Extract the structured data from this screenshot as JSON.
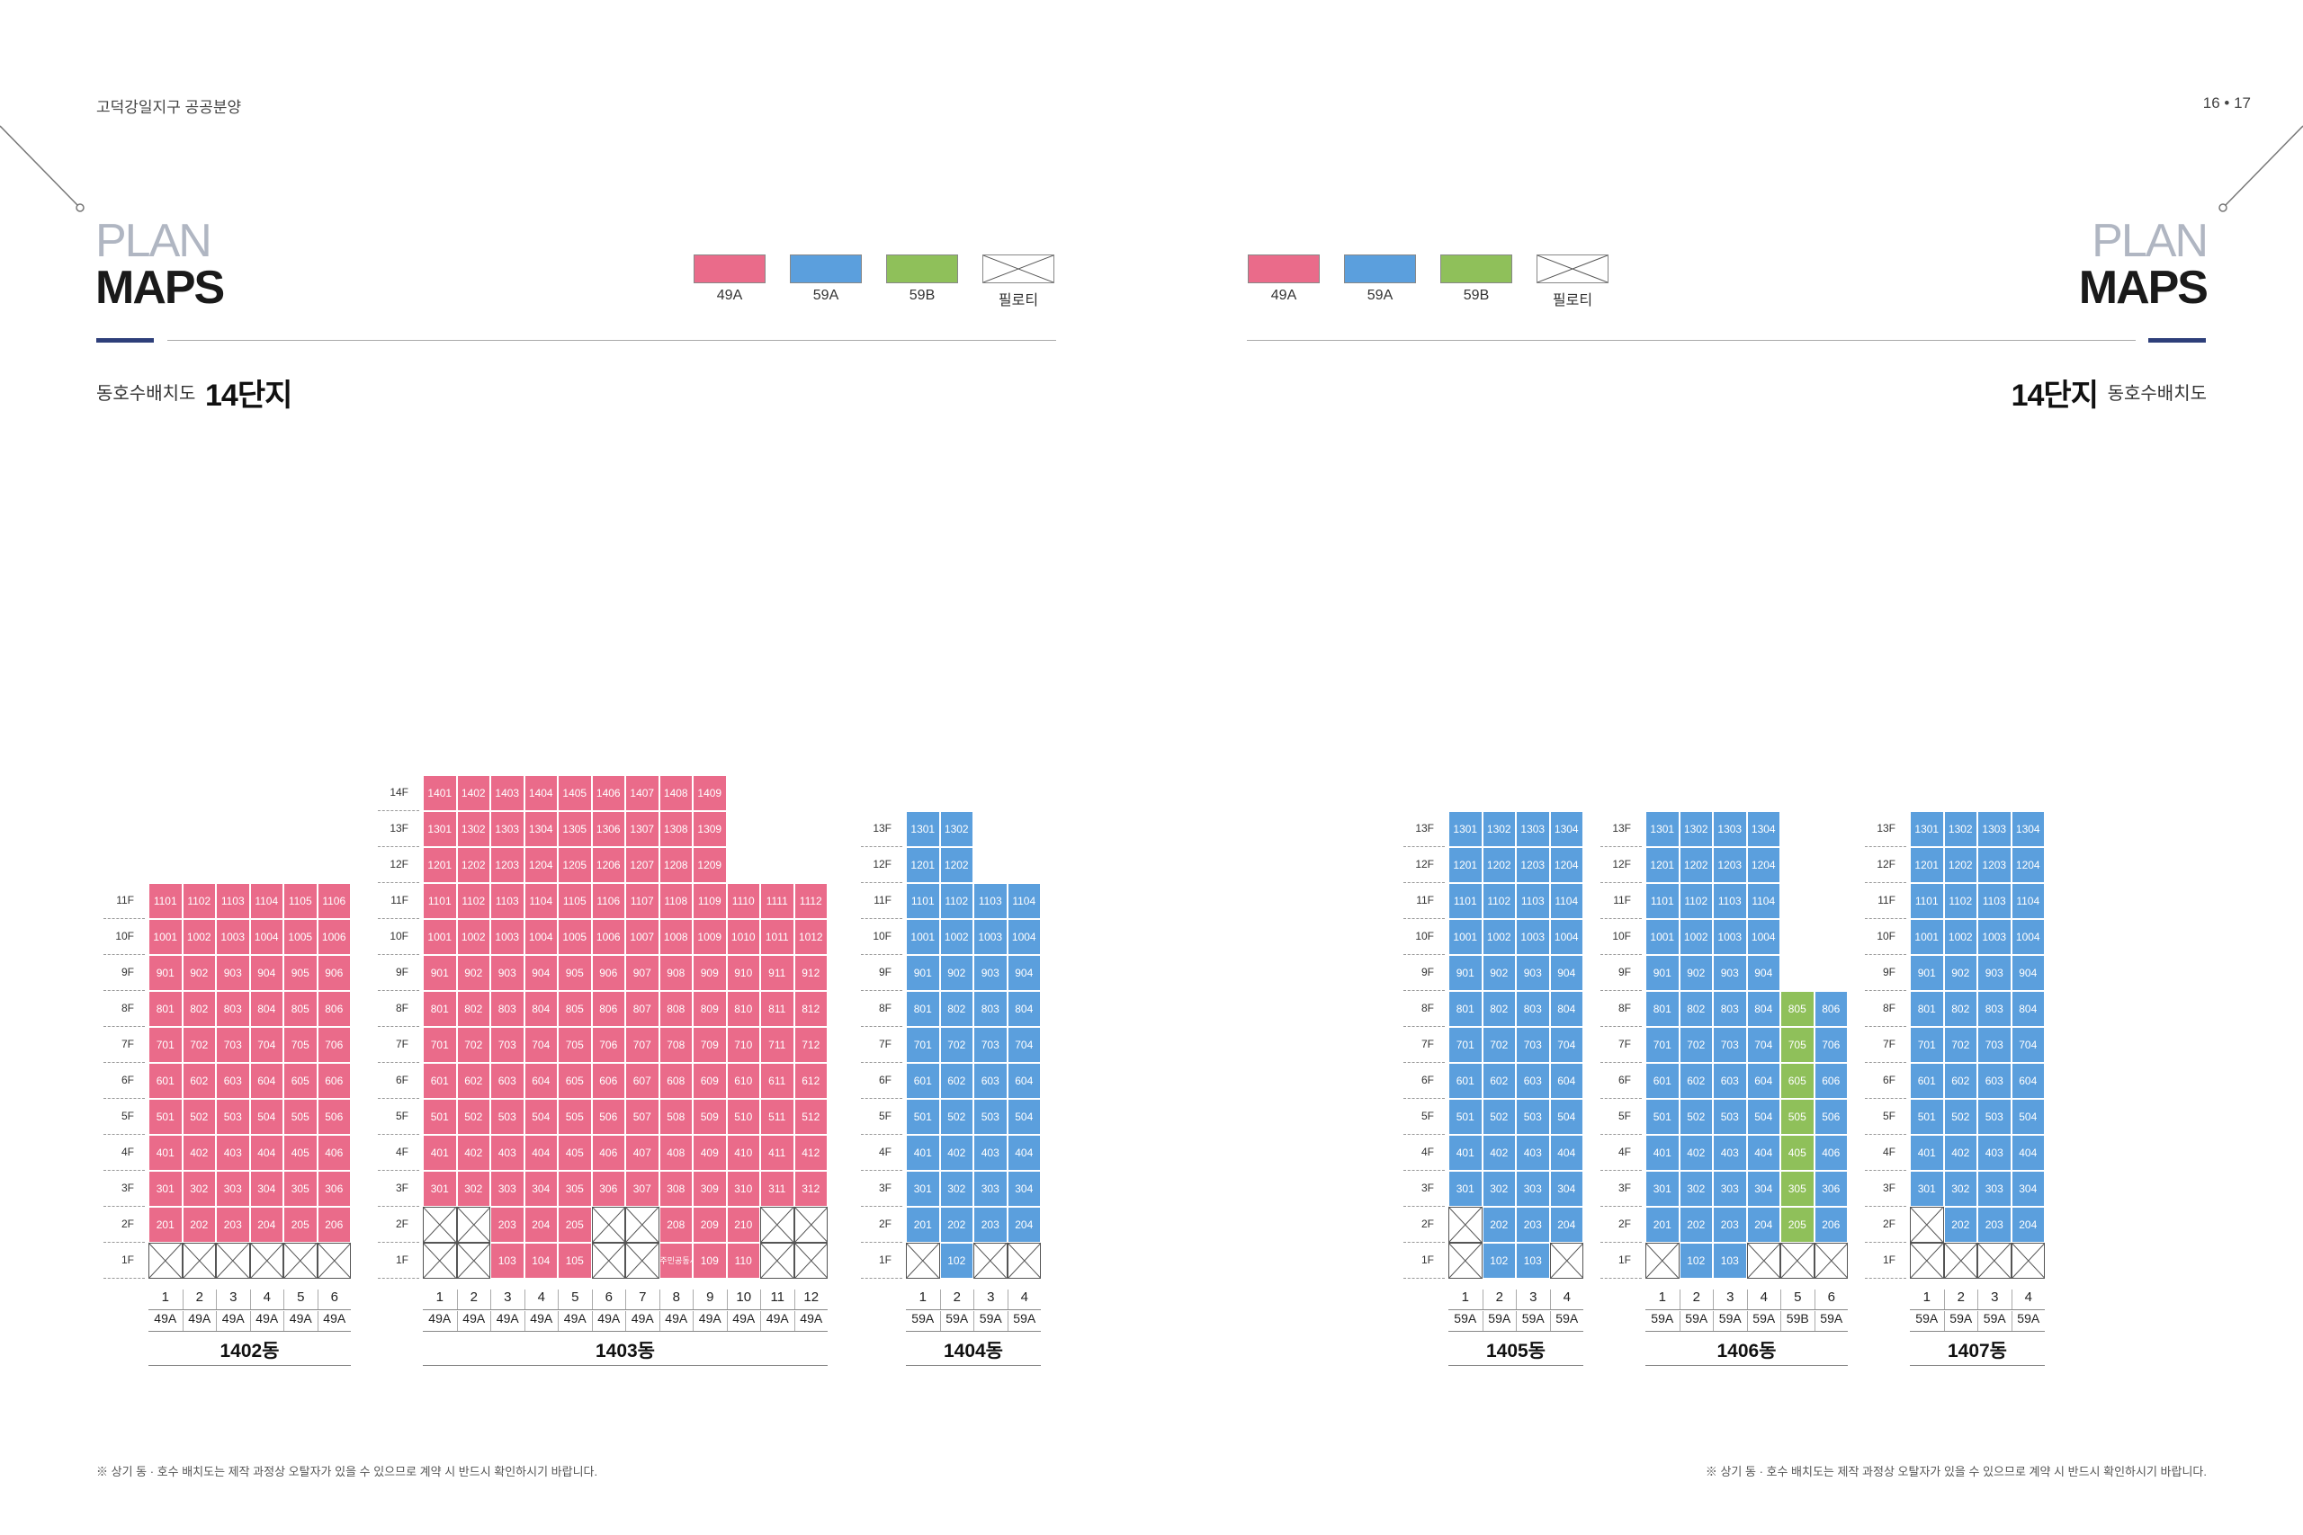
{
  "header": {
    "left_title": "고덕강일지구 공공분양",
    "page_numbers": "16 • 17"
  },
  "section": {
    "plan": "PLAN",
    "maps": "MAPS",
    "subtitle": "동호수배치도",
    "danji": "14단지"
  },
  "legend": [
    {
      "type": "49A",
      "label": "49A",
      "color": "#ea6b8a"
    },
    {
      "type": "59A",
      "label": "59A",
      "color": "#5b9fdd"
    },
    {
      "type": "59B",
      "label": "59B",
      "color": "#8fc05a"
    },
    {
      "type": "pilot",
      "label": "필로티",
      "color": "#ffffff"
    }
  ],
  "footnote": "※ 상기 동 · 호수 배치도는 제작 과정상 오탈자가 있을 수 있으므로 계약 시 반드시 확인하시기 바랍니다.",
  "buildings": [
    {
      "name": "1402동",
      "floors": 11,
      "lines": 6,
      "types": [
        "49A",
        "49A",
        "49A",
        "49A",
        "49A",
        "49A"
      ],
      "pilotis": [
        [
          1,
          1
        ],
        [
          1,
          2
        ],
        [
          1,
          3
        ],
        [
          1,
          4
        ],
        [
          1,
          5
        ],
        [
          1,
          6
        ]
      ]
    },
    {
      "name": "1403동",
      "floors": 14,
      "lines": 12,
      "types": [
        "49A",
        "49A",
        "49A",
        "49A",
        "49A",
        "49A",
        "49A",
        "49A",
        "49A",
        "49A",
        "49A",
        "49A"
      ],
      "line_tops": [
        14,
        14,
        14,
        14,
        14,
        14,
        14,
        14,
        14,
        11,
        11,
        11
      ],
      "pilotis": [
        [
          1,
          1
        ],
        [
          1,
          2
        ],
        [
          2,
          1
        ],
        [
          2,
          2
        ],
        [
          1,
          6
        ],
        [
          1,
          7
        ],
        [
          2,
          6
        ],
        [
          2,
          7
        ],
        [
          1,
          11
        ],
        [
          1,
          12
        ],
        [
          2,
          11
        ],
        [
          2,
          12
        ]
      ],
      "special": {
        "floor": 1,
        "line": 8,
        "text": "주민공동시설"
      }
    },
    {
      "name": "1404동",
      "floors": 13,
      "lines": 4,
      "types": [
        "59A",
        "59A",
        "59A",
        "59A"
      ],
      "line_tops": [
        13,
        13,
        11,
        11
      ],
      "pilotis": [
        [
          1,
          1
        ],
        [
          1,
          3
        ],
        [
          1,
          4
        ]
      ]
    },
    {
      "name": "1405동",
      "floors": 13,
      "lines": 4,
      "types": [
        "59A",
        "59A",
        "59A",
        "59A"
      ],
      "pilotis": [
        [
          1,
          1
        ],
        [
          2,
          1
        ],
        [
          1,
          4
        ]
      ]
    },
    {
      "name": "1406동",
      "floors": 13,
      "lines": 6,
      "types": [
        "59A",
        "59A",
        "59A",
        "59A",
        "59B",
        "59A"
      ],
      "line_tops": [
        13,
        13,
        13,
        13,
        8,
        8
      ],
      "pilotis": [
        [
          1,
          1
        ],
        [
          1,
          4
        ],
        [
          1,
          5
        ],
        [
          1,
          6
        ]
      ]
    },
    {
      "name": "1407동",
      "floors": 13,
      "lines": 4,
      "types": [
        "59A",
        "59A",
        "59A",
        "59A"
      ],
      "pilotis": [
        [
          1,
          1
        ],
        [
          2,
          1
        ],
        [
          1,
          2
        ],
        [
          1,
          3
        ],
        [
          1,
          4
        ]
      ]
    }
  ]
}
